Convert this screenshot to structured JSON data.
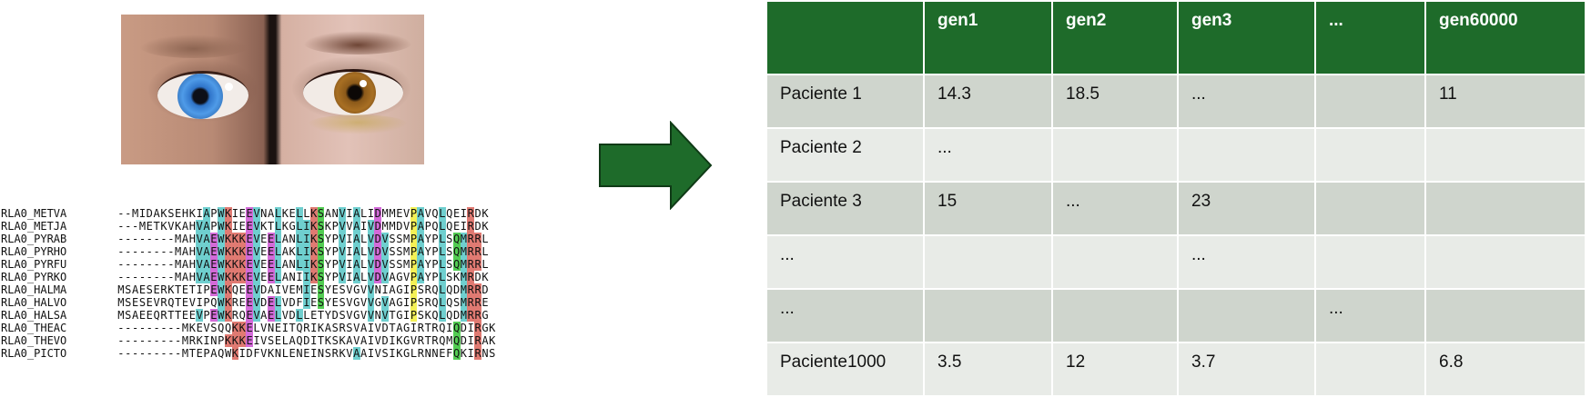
{
  "alignment": {
    "rows": [
      {
        "name": "RLA0_METVA",
        "seq": "--MIDAKSEHKIAPWKIEEVNALKELLKSANVIALIDMMEVPAVQLQEIRDK"
      },
      {
        "name": "RLA0_METJA",
        "seq": "---METKVKAHVAPWKIEEVKTLKGLIKSKPVVAIVDMMDVPAPQLQEIRDK"
      },
      {
        "name": "RLA0_PYRAB",
        "seq": "--------MAHVAEWKKKEVEELANLIKSYPVIALVDVSSMPAYPLSQMRRL"
      },
      {
        "name": "RLA0_PYRHO",
        "seq": "--------MAHVAEWKKKEVEELAKLIKSYPVIALVDVSSMPAYPLSQMRRL"
      },
      {
        "name": "RLA0_PYRFU",
        "seq": "--------MAHVAEWKKKEVEELANLIKSYPVIALVDVSSMPAYPLSQMRRL"
      },
      {
        "name": "RLA0_PYRKO",
        "seq": "--------MAHVAEWKKKEVEELANIIKSYPVIALVDVAGVPAYPLSKMRDK"
      },
      {
        "name": "RLA0_HALMA",
        "seq": "MSAESERKTETIPEWKQEEVDAIVEMIESYESVGVVNIAGIPSRQLQDMRRD"
      },
      {
        "name": "RLA0_HALVO",
        "seq": "MSESEVRQTEVIPQWKREEVDELVDFIESYESVGVVGVAGIPSRQLQSMRRE"
      },
      {
        "name": "RLA0_HALSA",
        "seq": "MSAEEQRTTEEVPEWKRQEVAELVDLLETYDSVGVVNVTGIPSKQLQDMRRG"
      },
      {
        "name": "RLA0_THEAC",
        "seq": "---------MKEVSQQKKELVNEITQRIKASRSVAIVDTAGIRTRQIQDIRGK"
      },
      {
        "name": "RLA0_THEVO",
        "seq": "---------MRKINPKKKEIVSELAQDITKSKAVAIVDIKGVRTRQMQDIRAK"
      },
      {
        "name": "RLA0_PICTO",
        "seq": "---------MTEPAQWKIDFVKNLENEINSRKVAAIVSIKGLRNNEFQKIRNS"
      }
    ],
    "colors": {
      "cyan": "#6fcfcf",
      "yellow": "#f4f155",
      "red": "#e07a72",
      "magenta": "#d36ad8",
      "orange": "#e5a155",
      "green": "#52cc52"
    }
  },
  "table": {
    "header_color": "#1e6b2a",
    "odd_row_color": "#cfd5cd",
    "even_row_color": "#e8ebe7",
    "columns": [
      "",
      "gen1",
      "gen2",
      "gen3",
      "...",
      "gen60000"
    ],
    "rows": [
      [
        "Paciente 1",
        "14.3",
        "18.5",
        "...",
        "",
        "11"
      ],
      [
        "Paciente 2",
        "...",
        "",
        "",
        "",
        ""
      ],
      [
        "Paciente 3",
        "15",
        "...",
        "23",
        "",
        ""
      ],
      [
        "...",
        "",
        "",
        "...",
        "",
        ""
      ],
      [
        "...",
        "",
        "",
        "",
        "...",
        ""
      ],
      [
        "Paciente1000",
        "3.5",
        "12",
        "3.7",
        "",
        "6.8"
      ]
    ]
  },
  "arrow_color": "#1e6b2a"
}
